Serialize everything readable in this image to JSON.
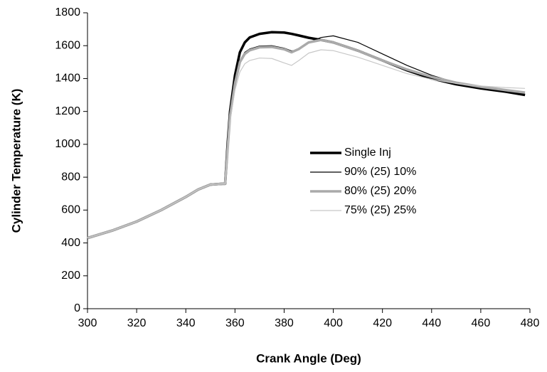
{
  "chart_data": {
    "type": "line",
    "xlabel": "Crank Angle (Deg)",
    "ylabel": "Cylinder Temperature (K)",
    "x": [
      300,
      310,
      320,
      330,
      340,
      345,
      350,
      355,
      356,
      357,
      358,
      360,
      362,
      364,
      366,
      370,
      375,
      380,
      383,
      386,
      390,
      395,
      400,
      410,
      420,
      430,
      440,
      450,
      460,
      470,
      478
    ],
    "series": [
      {
        "name": "Single Inj",
        "color": "#000000",
        "values": [
          430,
          475,
          530,
          600,
          680,
          725,
          755,
          760,
          760,
          1000,
          1200,
          1420,
          1560,
          1620,
          1650,
          1672,
          1682,
          1680,
          1672,
          1662,
          1648,
          1635,
          1620,
          1570,
          1510,
          1450,
          1400,
          1365,
          1340,
          1320,
          1300
        ]
      },
      {
        "name": "90% (25) 10%",
        "color": "#000000",
        "values": [
          430,
          475,
          530,
          600,
          680,
          725,
          755,
          760,
          760,
          980,
          1180,
          1380,
          1510,
          1560,
          1580,
          1598,
          1600,
          1585,
          1568,
          1575,
          1620,
          1650,
          1660,
          1620,
          1550,
          1480,
          1420,
          1375,
          1345,
          1320,
          1305
        ]
      },
      {
        "name": "80% (25) 20%",
        "color": "#aaaaaa",
        "values": [
          430,
          475,
          530,
          600,
          680,
          725,
          755,
          760,
          760,
          970,
          1170,
          1370,
          1500,
          1550,
          1572,
          1590,
          1592,
          1578,
          1560,
          1580,
          1620,
          1635,
          1620,
          1570,
          1510,
          1455,
          1410,
          1375,
          1350,
          1330,
          1315
        ]
      },
      {
        "name": "75% (25) 25%",
        "color": "#c8c8c8",
        "values": [
          430,
          475,
          530,
          600,
          680,
          725,
          755,
          760,
          760,
          950,
          1140,
          1330,
          1440,
          1490,
          1510,
          1525,
          1522,
          1495,
          1480,
          1510,
          1555,
          1575,
          1570,
          1530,
          1480,
          1430,
          1395,
          1370,
          1355,
          1345,
          1340
        ]
      }
    ],
    "xlim": [
      300,
      480
    ],
    "xticks": [
      300,
      320,
      340,
      360,
      380,
      400,
      420,
      440,
      460,
      480
    ],
    "ylim": [
      0,
      1800
    ],
    "yticks": [
      0,
      200,
      400,
      600,
      800,
      1000,
      1200,
      1400,
      1600,
      1800
    ],
    "grid": false
  }
}
